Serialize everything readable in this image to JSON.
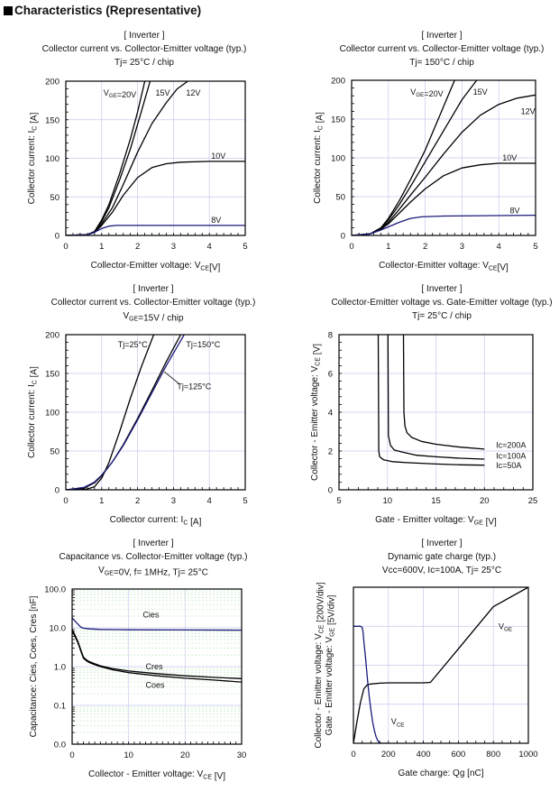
{
  "section_title": "Characteristics (Representative)",
  "chart_data": [
    {
      "type": "line",
      "header": "[ Inverter ]",
      "title": "Collector current vs. Collector-Emitter voltage (typ.)",
      "subtitle": "Tj= 25°C / chip",
      "xlabel": "Collector-Emitter voltage: VCE[V]",
      "ylabel": "Collector current: IC [A]",
      "xlim": [
        0,
        5
      ],
      "ylim": [
        0,
        200
      ],
      "xticks": [
        "0",
        "1",
        "2",
        "3",
        "4",
        "5"
      ],
      "yticks": [
        "0",
        "50",
        "100",
        "150",
        "200"
      ],
      "grid": true,
      "series": [
        {
          "name": "VGE=20V",
          "color": "#000000",
          "x": [
            0,
            0.6,
            0.8,
            1.0,
            1.2,
            1.5,
            1.8,
            2.0,
            2.2
          ],
          "y": [
            0,
            1,
            5,
            20,
            40,
            80,
            125,
            160,
            200
          ]
        },
        {
          "name": "15V",
          "color": "#000000",
          "x": [
            0,
            0.6,
            0.8,
            1.0,
            1.2,
            1.5,
            1.8,
            2.1,
            2.35
          ],
          "y": [
            0,
            1,
            5,
            18,
            36,
            72,
            112,
            160,
            200
          ]
        },
        {
          "name": "12V",
          "color": "#000000",
          "x": [
            0,
            0.6,
            0.8,
            1.0,
            1.3,
            1.6,
            2.0,
            2.4,
            2.8,
            3.1,
            3.4
          ],
          "y": [
            0,
            1,
            5,
            15,
            36,
            66,
            108,
            145,
            172,
            190,
            200
          ]
        },
        {
          "name": "10V",
          "color": "#000000",
          "x": [
            0,
            0.6,
            0.8,
            1.0,
            1.3,
            1.6,
            2.0,
            2.4,
            2.8,
            3.2,
            4.0,
            5.0
          ],
          "y": [
            0,
            1,
            4,
            13,
            30,
            52,
            75,
            88,
            93,
            95,
            96,
            96
          ]
        },
        {
          "name": "8V",
          "color": "#1a1a7a",
          "x": [
            0,
            0.6,
            0.8,
            1.0,
            1.2,
            1.4,
            2.0,
            3.0,
            5.0
          ],
          "y": [
            0,
            1,
            4,
            9,
            12,
            13,
            13,
            13,
            13
          ]
        }
      ],
      "annotations": [
        {
          "text": "VGE=20V",
          "x": 1.05,
          "y": 185
        },
        {
          "text": "15V",
          "x": 2.5,
          "y": 185
        },
        {
          "text": "12V",
          "x": 3.35,
          "y": 185
        },
        {
          "text": "10V",
          "x": 4.05,
          "y": 103
        },
        {
          "text": "8V",
          "x": 4.05,
          "y": 20
        }
      ]
    },
    {
      "type": "line",
      "header": "[ Inverter ]",
      "title": "Collector current vs. Collector-Emitter voltage (typ.)",
      "subtitle": "Tj= 150°C / chip",
      "xlabel": "Collector-Emitter voltage: VCE[V]",
      "ylabel": "Collector current: IC [A]",
      "xlim": [
        0,
        5
      ],
      "ylim": [
        0,
        200
      ],
      "xticks": [
        "0",
        "1",
        "2",
        "3",
        "4",
        "5"
      ],
      "yticks": [
        "0",
        "50",
        "100",
        "150",
        "200"
      ],
      "grid": true,
      "series": [
        {
          "name": "VGE=20V",
          "color": "#000000",
          "x": [
            0,
            0.5,
            0.8,
            1.0,
            1.3,
            1.6,
            2.0,
            2.4,
            2.8
          ],
          "y": [
            0,
            2,
            10,
            22,
            45,
            72,
            110,
            155,
            200
          ]
        },
        {
          "name": "15V",
          "color": "#000000",
          "x": [
            0,
            0.5,
            0.8,
            1.0,
            1.3,
            1.6,
            2.0,
            2.5,
            3.0,
            3.4
          ],
          "y": [
            0,
            2,
            9,
            20,
            40,
            63,
            95,
            135,
            175,
            200
          ]
        },
        {
          "name": "12V",
          "color": "#000000",
          "x": [
            0,
            0.5,
            0.8,
            1.0,
            1.3,
            1.6,
            2.0,
            2.5,
            3.0,
            3.5,
            4.0,
            4.5,
            5.0
          ],
          "y": [
            0,
            2,
            8,
            17,
            34,
            52,
            75,
            105,
            133,
            155,
            169,
            177,
            181
          ]
        },
        {
          "name": "10V",
          "color": "#000000",
          "x": [
            0,
            0.5,
            0.8,
            1.0,
            1.3,
            1.6,
            2.0,
            2.5,
            3.0,
            3.5,
            4.0,
            5.0
          ],
          "y": [
            0,
            2,
            8,
            15,
            29,
            43,
            60,
            77,
            87,
            91,
            93,
            93
          ]
        },
        {
          "name": "8V",
          "color": "#1a1a7a",
          "x": [
            0,
            0.5,
            0.8,
            1.0,
            1.3,
            1.6,
            1.9,
            2.5,
            5.0
          ],
          "y": [
            0,
            2,
            7,
            11,
            17,
            22,
            24,
            25,
            26
          ]
        }
      ],
      "annotations": [
        {
          "text": "VGE=20V",
          "x": 1.6,
          "y": 185
        },
        {
          "text": "15V",
          "x": 3.3,
          "y": 185
        },
        {
          "text": "12V",
          "x": 4.6,
          "y": 160
        },
        {
          "text": "10V",
          "x": 4.1,
          "y": 100
        },
        {
          "text": "8V",
          "x": 4.3,
          "y": 32
        }
      ]
    },
    {
      "type": "line",
      "header": "[ Inverter ]",
      "title": "Collector current vs. Collector-Emitter voltage (typ.)",
      "subtitle": "VGE=15V / chip",
      "xlabel": "Collector current: IC [A]",
      "ylabel": "Collector current: IC [A]",
      "xlim": [
        0,
        5
      ],
      "ylim": [
        0,
        200
      ],
      "xticks": [
        "0",
        "1",
        "2",
        "3",
        "4",
        "5"
      ],
      "yticks": [
        "0",
        "50",
        "100",
        "150",
        "200"
      ],
      "grid": true,
      "series": [
        {
          "name": "Tj=25°C",
          "color": "#000000",
          "x": [
            0,
            0.6,
            0.8,
            1.0,
            1.2,
            1.5,
            1.8,
            2.1,
            2.45
          ],
          "y": [
            0,
            1,
            4,
            15,
            35,
            75,
            118,
            158,
            200
          ]
        },
        {
          "name": "Tj=125°C",
          "color": "#000000",
          "x": [
            0,
            0.5,
            0.8,
            1.0,
            1.3,
            1.6,
            2.0,
            2.4,
            2.8,
            3.2
          ],
          "y": [
            0,
            2,
            9,
            18,
            36,
            58,
            92,
            128,
            165,
            200
          ]
        },
        {
          "name": "Tj=150°C",
          "color": "#1a1a7a",
          "x": [
            0,
            0.5,
            0.8,
            1.0,
            1.3,
            1.6,
            2.0,
            2.4,
            2.8,
            3.3
          ],
          "y": [
            0,
            3,
            10,
            19,
            36,
            57,
            90,
            125,
            160,
            200
          ]
        }
      ],
      "annotations": [
        {
          "text": "Tj=25°C",
          "x": 1.45,
          "y": 187
        },
        {
          "text": "Tj=150°C",
          "x": 3.35,
          "y": 187
        },
        {
          "text": "Tj=125°C",
          "x": 3.1,
          "y": 133
        }
      ]
    },
    {
      "type": "line",
      "header": "[ Inverter ]",
      "title": "Collector-Emitter voltage  vs. Gate-Emitter voltage (typ.)",
      "subtitle": "Tj= 25°C / chip",
      "xlabel": "Gate - Emitter voltage: VGE [V]",
      "ylabel": "Collector - Emitter voltage: VCE [V]",
      "xlim": [
        5,
        25
      ],
      "ylim": [
        0,
        8
      ],
      "xticks": [
        "5",
        "10",
        "15",
        "20",
        "25"
      ],
      "yticks": [
        "0",
        "2",
        "4",
        "6",
        "8"
      ],
      "grid": true,
      "series": [
        {
          "name": "Ic=200A",
          "color": "#000000",
          "x": [
            11.65,
            11.7,
            11.8,
            12.0,
            12.5,
            13.5,
            15,
            17.5,
            20
          ],
          "y": [
            8,
            4,
            3.3,
            2.95,
            2.7,
            2.5,
            2.35,
            2.2,
            2.1
          ]
        },
        {
          "name": "Ic=100A",
          "color": "#000000",
          "x": [
            10.05,
            10.1,
            10.3,
            10.7,
            11.5,
            13,
            15,
            17.5,
            20
          ],
          "y": [
            8,
            2.8,
            2.3,
            2.05,
            1.95,
            1.78,
            1.7,
            1.63,
            1.58
          ]
        },
        {
          "name": "Ic=50A",
          "color": "#000000",
          "x": [
            9.05,
            9.1,
            9.2,
            9.6,
            10.5,
            12,
            15,
            17.5,
            20
          ],
          "y": [
            8,
            2.0,
            1.7,
            1.55,
            1.45,
            1.4,
            1.33,
            1.29,
            1.27
          ]
        }
      ],
      "annotations": [
        {
          "text": "Ic=200A",
          "x": 21.2,
          "y": 2.3
        },
        {
          "text": "Ic=100A",
          "x": 21.2,
          "y": 1.75
        },
        {
          "text": "Ic=50A",
          "x": 21.2,
          "y": 1.25
        }
      ]
    },
    {
      "type": "line",
      "header": "[ Inverter ]",
      "title": "Capacitance  vs.  Collector-Emitter voltage  (typ.)",
      "subtitle": "VGE=0V,  f= 1MHz,  Tj= 25°C",
      "xlabel": "Collector - Emitter voltage: VCE [V]",
      "ylabel": "Capacitance: Cies, Coes, Cres [nF]",
      "xscale": "linear",
      "yscale": "log",
      "xlim": [
        0,
        30
      ],
      "ylim": [
        0.01,
        100
      ],
      "xticks": [
        "0",
        "10",
        "20",
        "30"
      ],
      "yticks": [
        "0.0",
        "0.1",
        "1.0",
        "10.0",
        "100.0"
      ],
      "grid": true,
      "series": [
        {
          "name": "Cies",
          "color": "#1a1a7a",
          "x": [
            0,
            0.5,
            1,
            1.5,
            2,
            3,
            5,
            10,
            20,
            30
          ],
          "y": [
            18,
            15,
            12.5,
            10.5,
            9.8,
            9.4,
            9.1,
            8.9,
            8.8,
            8.7
          ]
        },
        {
          "name": "Cres",
          "color": "#000000",
          "x": [
            0,
            0.5,
            1,
            1.5,
            2,
            2.5,
            3,
            4,
            5,
            7,
            10,
            15,
            20,
            25,
            30
          ],
          "y": [
            9,
            6.5,
            4.5,
            2.8,
            1.75,
            1.5,
            1.35,
            1.18,
            1.05,
            0.9,
            0.77,
            0.66,
            0.58,
            0.53,
            0.49
          ]
        },
        {
          "name": "Coes",
          "color": "#000000",
          "x": [
            0,
            0.5,
            1,
            1.5,
            2,
            2.5,
            3,
            4,
            5,
            7,
            10,
            15,
            20,
            25,
            30
          ],
          "y": [
            8.5,
            6,
            4.2,
            2.6,
            1.65,
            1.42,
            1.28,
            1.12,
            1.0,
            0.84,
            0.7,
            0.58,
            0.5,
            0.45,
            0.4
          ]
        }
      ],
      "annotations": [
        {
          "text": "Cies",
          "x": 12.5,
          "y": 22
        },
        {
          "text": "Cres",
          "x": 13,
          "y": 1.0
        },
        {
          "text": "Coes",
          "x": 13,
          "y": 0.33
        }
      ]
    },
    {
      "type": "line",
      "header": "[ Inverter ]",
      "title": "Dynamic gate charge  (typ.)",
      "subtitle": "Vcc=600V,    Ic=100A,   Tj= 25°C",
      "xlabel": "Gate charge: Qg [nC]",
      "ylabel_line1": "Collector - Emitter voltage: VCE [200V/div]",
      "ylabel_line2": "Gate - Emitter voltage:     VGE [5V/div]",
      "xlim": [
        0,
        1000
      ],
      "ylim_div": [
        0,
        4
      ],
      "xticks": [
        "0",
        "200",
        "400",
        "600",
        "800",
        "1000"
      ],
      "grid": true,
      "series": [
        {
          "name": "VGE",
          "color": "#000000",
          "x": [
            0,
            20,
            40,
            60,
            80,
            100,
            150,
            200,
            300,
            400,
            440,
            600,
            800,
            1000
          ],
          "y_div": [
            0,
            0.55,
            1.05,
            1.4,
            1.5,
            1.52,
            1.54,
            1.55,
            1.55,
            1.55,
            1.56,
            2.42,
            3.5,
            4.0
          ]
        },
        {
          "name": "VCE",
          "color": "#1a1a7a",
          "x": [
            0,
            40,
            50,
            55,
            60,
            70,
            80,
            90,
            100,
            110,
            120,
            130,
            140,
            150,
            160,
            200
          ],
          "y_div": [
            3.0,
            3.0,
            2.97,
            2.85,
            2.6,
            2.15,
            1.65,
            1.2,
            0.85,
            0.55,
            0.32,
            0.16,
            0.06,
            0.01,
            0,
            0
          ]
        }
      ],
      "annotations": [
        {
          "text": "VGE",
          "x": 830,
          "y_div": 3.0
        },
        {
          "text": "VCE",
          "x": 215,
          "y_div": 0.55
        }
      ]
    }
  ]
}
